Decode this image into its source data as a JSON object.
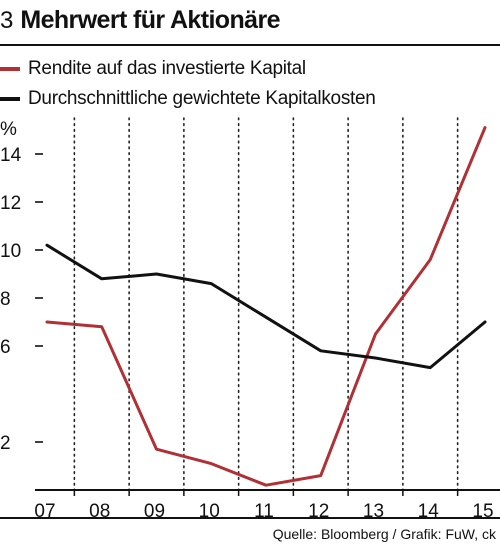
{
  "header": {
    "number": "3",
    "title": "Mehrwert für Aktionäre"
  },
  "footer": {
    "source": "Quelle: Bloomberg / Grafik: FuW, ck"
  },
  "chart_data": {
    "type": "line",
    "title": "Mehrwert für Aktionäre",
    "ylabel": "%",
    "xlabel": "",
    "categories": [
      "07",
      "08",
      "09",
      "10",
      "11",
      "12",
      "13",
      "14",
      "15"
    ],
    "y_ticks": [
      2,
      6,
      8,
      10,
      12,
      14
    ],
    "ylim": [
      0,
      15.5
    ],
    "grid": "vertical dotted lines",
    "legend_position": "top-left",
    "series": [
      {
        "name": "Rendite auf das investierte Kapital",
        "color": "#b03035",
        "values": [
          7.0,
          6.8,
          1.7,
          1.1,
          0.2,
          0.6,
          6.5,
          9.6,
          15.1
        ]
      },
      {
        "name": "Durchschnittliche gewichtete Kapitalkosten",
        "color": "#111111",
        "values": [
          10.2,
          8.8,
          9.0,
          8.6,
          7.2,
          5.8,
          5.5,
          5.1,
          7.0
        ]
      }
    ]
  }
}
